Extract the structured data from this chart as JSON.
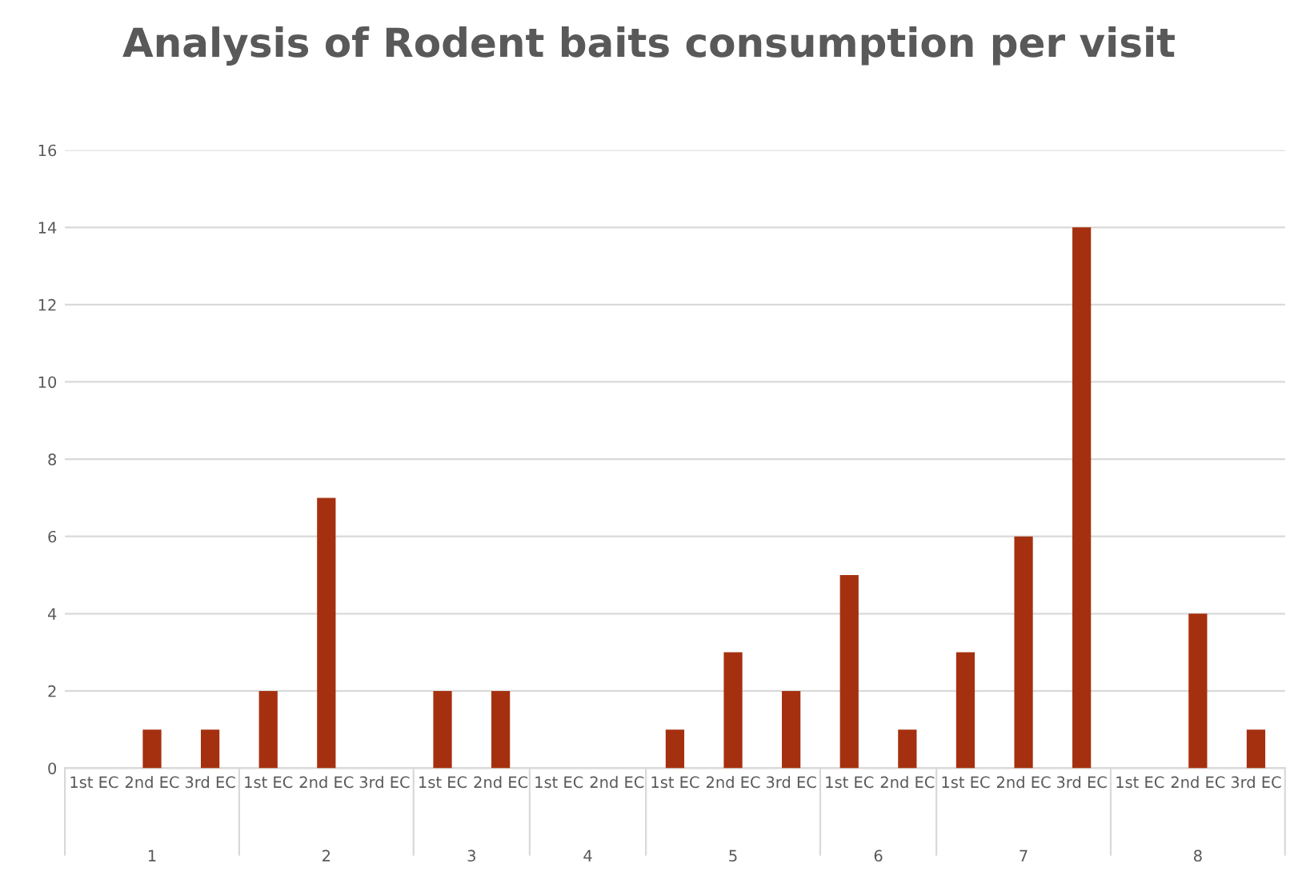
{
  "chart_data": {
    "type": "bar",
    "title": "Analysis of Rodent baits consumption per visit",
    "categories": [
      "1st EC",
      "2nd EC",
      "3rd EC",
      "1st EC",
      "2nd EC",
      "3rd EC",
      "1st EC",
      "2nd EC",
      "1st EC",
      "2nd EC",
      "1st EC",
      "2nd EC",
      "3rd EC",
      "1st EC",
      "2nd EC",
      "1st EC",
      "2nd EC",
      "3rd EC",
      "1st EC",
      "2nd EC",
      "3rd EC"
    ],
    "values": [
      0,
      1,
      1,
      2,
      7,
      0,
      2,
      2,
      0,
      0,
      1,
      3,
      2,
      5,
      1,
      3,
      6,
      14,
      0,
      4,
      1
    ],
    "color": "#a5300f",
    "annotations": [
      "1",
      "2",
      "3",
      "4",
      "5",
      "6",
      "7",
      "8"
    ],
    "ylim": [
      0,
      16
    ],
    "yticks": [
      0,
      2,
      4,
      6,
      8,
      10,
      12,
      14,
      16
    ],
    "grid": "y"
  }
}
